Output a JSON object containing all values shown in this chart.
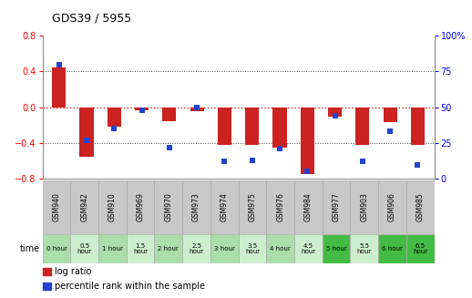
{
  "title": "GDS39 / 5955",
  "samples": [
    "GSM940",
    "GSM942",
    "GSM910",
    "GSM969",
    "GSM970",
    "GSM973",
    "GSM974",
    "GSM975",
    "GSM976",
    "GSM984",
    "GSM977",
    "GSM903",
    "GSM906",
    "GSM985"
  ],
  "time_labels": [
    "0 hour",
    "0.5\nhour",
    "1 hour",
    "1.5\nhour",
    "2 hour",
    "2.5\nhour",
    "3 hour",
    "3.5\nhour",
    "4 hour",
    "4.5\nhour",
    "5 hour",
    "5.5\nhour",
    "6 hour",
    "6.5\nhour"
  ],
  "log_ratio": [
    0.45,
    -0.55,
    -0.22,
    -0.03,
    -0.16,
    -0.04,
    -0.42,
    -0.42,
    -0.45,
    -0.75,
    -0.1,
    -0.42,
    -0.17,
    -0.42
  ],
  "percentile": [
    80,
    27,
    35,
    48,
    22,
    50,
    12,
    13,
    21,
    5,
    44,
    12,
    33,
    10
  ],
  "ylim_left": [
    -0.8,
    0.8
  ],
  "ylim_right": [
    0,
    100
  ],
  "yticks_left": [
    -0.8,
    -0.4,
    0,
    0.4,
    0.8
  ],
  "yticks_right": [
    0,
    25,
    50,
    75,
    100
  ],
  "bar_color_red": "#cc2222",
  "bar_color_blue": "#2244cc",
  "cell_colors_gsm": "#c8c8c8",
  "cell_colors_time": [
    "#aaddaa",
    "#cceecc",
    "#aaddaa",
    "#cceecc",
    "#aaddaa",
    "#cceecc",
    "#aaddaa",
    "#cceecc",
    "#aaddaa",
    "#cceecc",
    "#44bb44",
    "#cceecc",
    "#44bb44",
    "#44bb44"
  ],
  "grid_dotted_color": "#444444",
  "red_dotted_color": "#cc2222",
  "fig_bg": "#ffffff",
  "chart_bg": "#ffffff",
  "bar_width": 0.5
}
